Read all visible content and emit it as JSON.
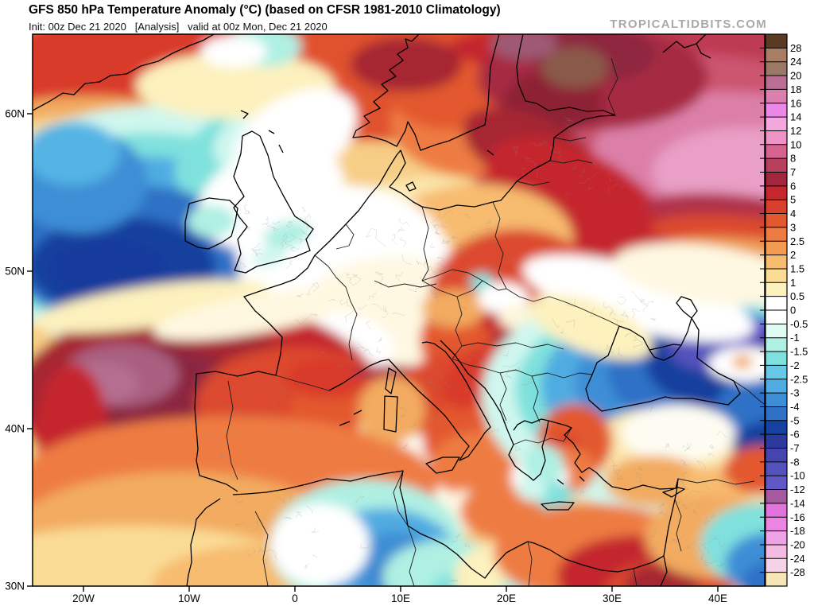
{
  "header": {
    "title": "GFS 850 hPa Temperature Anomaly (°C) (based on CFSR 1981-2010 Climatology)",
    "init_line": "Init: 00z Dec 21 2020   [Analysis]   valid at 00z Mon, Dec 21 2020",
    "watermark": "TROPICALTIDBITS.COM"
  },
  "axes": {
    "lat_labels": [
      "60N",
      "50N",
      "40N",
      "30N"
    ],
    "lon_labels": [
      "20W",
      "10W",
      "0",
      "10E",
      "20E",
      "30E",
      "40E"
    ]
  },
  "colorbar": {
    "labels": [
      "28",
      "24",
      "20",
      "18",
      "16",
      "14",
      "12",
      "10",
      "8",
      "7",
      "6",
      "5",
      "4",
      "3",
      "2.5",
      "2",
      "1.5",
      "1",
      "0.5",
      "0",
      "-0.5",
      "-1",
      "-1.5",
      "-2",
      "-2.5",
      "-3",
      "-4",
      "-5",
      "-6",
      "-7",
      "-8",
      "-10",
      "-12",
      "-14",
      "-16",
      "-18",
      "-20",
      "-24",
      "-28"
    ],
    "colors": [
      "#5A3A22",
      "#A97C64",
      "#9A7A66",
      "#BA6E94",
      "#DB7FAE",
      "#EC86E8",
      "#F2A8DE",
      "#ED93C6",
      "#D76490",
      "#B8405E",
      "#A1283C",
      "#C5272E",
      "#D8402C",
      "#E3592F",
      "#EE7B43",
      "#F29B53",
      "#F7BC6F",
      "#FADC95",
      "#FDF1BE",
      "#FFFFFF",
      "#FFFFFF",
      "#E0FBF3",
      "#AFF0E3",
      "#7FE1DD",
      "#67C8E8",
      "#50ACE2",
      "#3D8ED5",
      "#2E71C6",
      "#16419E",
      "#2B3A9C",
      "#4545B0",
      "#5452BC",
      "#6157C6",
      "#A55AA0",
      "#E273DC",
      "#EC85E2",
      "#F0A2E6",
      "#F3BBE0",
      "#F6D2E8",
      "#F6E6B6"
    ]
  },
  "chart_data": {
    "type": "heatmap",
    "title": "GFS 850 hPa Temperature Anomaly (°C)",
    "climatology": "CFSR 1981-2010",
    "valid": "00z Mon, Dec 21 2020",
    "units": "°C",
    "scale_range": [
      -28,
      28
    ],
    "legend_position": "right",
    "regions": [
      {
        "area": "North Atlantic cold pool west of Ireland",
        "anomaly_c": -7
      },
      {
        "area": "Atlantic warm blob west of Iberia",
        "anomaly_c": 12
      },
      {
        "area": "Atlantic southeast of Iceland (top-left corner)",
        "anomaly_c": 6
      },
      {
        "area": "Scandinavia and Finland",
        "anomaly_c": 14
      },
      {
        "area": "Northwest Russia",
        "anomaly_c": 17
      },
      {
        "area": "Baltics-Belarus dark red warm band",
        "anomaly_c": 9
      },
      {
        "area": "British Isles",
        "anomaly_c": 0
      },
      {
        "area": "France / Germany",
        "anomaly_c": 1.5
      },
      {
        "area": "Central Europe and Balkans",
        "anomaly_c": 5
      },
      {
        "area": "Western Iberia",
        "anomaly_c": 4
      },
      {
        "area": "Ukraine and Black Sea",
        "anomaly_c": -9
      },
      {
        "area": "Southern Russia violet core",
        "anomaly_c": -11
      },
      {
        "area": "Central Turkey",
        "anomaly_c": 1
      },
      {
        "area": "Eastern Turkey / Caucasus",
        "anomaly_c": -6
      },
      {
        "area": "Morocco / Northwest Africa",
        "anomaly_c": -4
      },
      {
        "area": "Libya-Egypt coast",
        "anomaly_c": 7
      },
      {
        "area": "Middle East bottom-right corner",
        "anomaly_c": -4
      }
    ]
  },
  "field_base": "#F7CE86",
  "field_blobs": [
    [
      460,
      40,
      520,
      95,
      0,
      "#E0512E"
    ],
    [
      120,
      55,
      180,
      85,
      0,
      "#D93A2B"
    ],
    [
      790,
      110,
      270,
      150,
      0,
      "#BE3B52"
    ],
    [
      830,
      130,
      225,
      105,
      0,
      "#CC5470"
    ],
    [
      870,
      150,
      165,
      78,
      0,
      "#DC7FA8"
    ],
    [
      898,
      172,
      118,
      55,
      0,
      "#E99FC6"
    ],
    [
      612,
      60,
      120,
      70,
      0,
      "#C5272E"
    ],
    [
      560,
      112,
      110,
      68,
      0,
      "#EE7B43"
    ],
    [
      522,
      75,
      70,
      45,
      0,
      "#E3592F"
    ],
    [
      470,
      38,
      70,
      34,
      0,
      "#A62833"
    ],
    [
      705,
      55,
      145,
      65,
      0,
      "#A62B42"
    ],
    [
      655,
      85,
      62,
      40,
      0,
      "#8E2136"
    ],
    [
      705,
      25,
      78,
      35,
      0,
      "#8E2840"
    ],
    [
      682,
      42,
      42,
      26,
      0,
      "#8A5A48"
    ],
    [
      618,
      12,
      42,
      20,
      0,
      "#9E5A74"
    ],
    [
      630,
      150,
      95,
      45,
      25,
      "#A62833"
    ],
    [
      672,
      210,
      95,
      42,
      35,
      "#A62833"
    ],
    [
      712,
      262,
      92,
      40,
      42,
      "#A82838"
    ],
    [
      752,
      305,
      100,
      36,
      30,
      "#AE2F44"
    ],
    [
      700,
      235,
      150,
      75,
      35,
      "#C5272E"
    ],
    [
      880,
      225,
      110,
      24,
      5,
      "#B03348"
    ],
    [
      888,
      252,
      110,
      24,
      5,
      "#DC4A2D"
    ],
    [
      896,
      278,
      105,
      22,
      5,
      "#EE9C55"
    ],
    [
      902,
      302,
      100,
      22,
      5,
      "#FBDC95"
    ],
    [
      500,
      300,
      160,
      120,
      0,
      "#FBE8B0"
    ],
    [
      560,
      258,
      120,
      70,
      0,
      "#F7BC6F"
    ],
    [
      70,
      100,
      110,
      22,
      0,
      "#F2AB60"
    ],
    [
      75,
      125,
      115,
      22,
      0,
      "#FBDC95"
    ],
    [
      80,
      150,
      110,
      20,
      0,
      "#BFF2E8"
    ],
    [
      155,
      245,
      245,
      155,
      0,
      "#CFF7EE"
    ],
    [
      148,
      252,
      215,
      128,
      0,
      "#7FE1DD"
    ],
    [
      140,
      262,
      188,
      108,
      0,
      "#50ACE2"
    ],
    [
      128,
      278,
      158,
      88,
      0,
      "#2E71C6"
    ],
    [
      112,
      292,
      118,
      62,
      0,
      "#16419E"
    ],
    [
      95,
      296,
      72,
      36,
      0,
      "#123A9C"
    ],
    [
      262,
      142,
      92,
      48,
      -30,
      "#7FE1DD"
    ],
    [
      292,
      120,
      72,
      36,
      -30,
      "#CFF7EE"
    ],
    [
      60,
      185,
      85,
      65,
      0,
      "#3D8ED5"
    ],
    [
      50,
      150,
      60,
      40,
      0,
      "#55B4E4"
    ],
    [
      300,
      205,
      95,
      62,
      -20,
      "#FFFFFF"
    ],
    [
      330,
      265,
      75,
      85,
      0,
      "#FFFFFF"
    ],
    [
      255,
      65,
      125,
      42,
      0,
      "#FDF1BE"
    ],
    [
      330,
      130,
      85,
      52,
      -30,
      "#FFFFFF"
    ],
    [
      290,
      15,
      48,
      26,
      0,
      "#AFF0E3"
    ],
    [
      253,
      22,
      42,
      20,
      0,
      "#FFFFFF"
    ],
    [
      395,
      300,
      135,
      110,
      0,
      "#FFFFFF"
    ],
    [
      460,
      370,
      135,
      90,
      0,
      "#FEF8E2"
    ],
    [
      350,
      395,
      105,
      50,
      0,
      "#FFFFFF"
    ],
    [
      225,
      235,
      30,
      20,
      0,
      "#AFF0E3"
    ],
    [
      320,
      252,
      30,
      16,
      -15,
      "#AFF0E3"
    ],
    [
      298,
      280,
      22,
      12,
      -15,
      "#CFF7EE"
    ],
    [
      610,
      330,
      110,
      85,
      0,
      "#DC4A2D"
    ],
    [
      648,
      420,
      100,
      80,
      0,
      "#DC4A2D"
    ],
    [
      565,
      385,
      78,
      58,
      0,
      "#E3592F"
    ],
    [
      615,
      392,
      42,
      26,
      0,
      "#A62833"
    ],
    [
      655,
      442,
      52,
      30,
      0,
      "#B03348"
    ],
    [
      590,
      357,
      30,
      18,
      0,
      "#C5272E"
    ],
    [
      530,
      345,
      40,
      24,
      0,
      "#F2AB60"
    ],
    [
      565,
      312,
      15,
      12,
      0,
      "#7FE1DD"
    ],
    [
      592,
      332,
      32,
      20,
      0,
      "#FFFFFF"
    ],
    [
      612,
      356,
      26,
      16,
      0,
      "#FDF6DC"
    ],
    [
      210,
      460,
      230,
      125,
      0,
      "#C5272E"
    ],
    [
      165,
      448,
      185,
      92,
      0,
      "#A62833"
    ],
    [
      142,
      452,
      122,
      62,
      0,
      "#8C2740"
    ],
    [
      112,
      428,
      72,
      40,
      0,
      "#A95E80"
    ],
    [
      88,
      438,
      46,
      26,
      0,
      "#B56E90"
    ],
    [
      330,
      465,
      125,
      72,
      0,
      "#DC4A2D"
    ],
    [
      395,
      492,
      72,
      82,
      0,
      "#E3592F"
    ],
    [
      372,
      432,
      52,
      26,
      0,
      "#D93A2B"
    ],
    [
      472,
      428,
      72,
      11,
      3,
      "#B03348"
    ],
    [
      50,
      500,
      45,
      85,
      0,
      "#C5272E"
    ],
    [
      150,
      342,
      150,
      26,
      -8,
      "#FDF1BE"
    ],
    [
      280,
      352,
      130,
      24,
      -10,
      "#FFF8E0"
    ],
    [
      482,
      502,
      72,
      62,
      0,
      "#FBE8B0"
    ],
    [
      492,
      545,
      52,
      42,
      0,
      "#FEFCF2"
    ],
    [
      502,
      458,
      26,
      16,
      0,
      "#AFF0E3"
    ],
    [
      245,
      565,
      265,
      85,
      0,
      "#EE7B43"
    ],
    [
      185,
      625,
      205,
      75,
      0,
      "#F2AB60"
    ],
    [
      125,
      680,
      225,
      62,
      0,
      "#FADC95"
    ],
    [
      305,
      692,
      155,
      52,
      0,
      "#F7BC6F"
    ],
    [
      505,
      452,
      62,
      42,
      -40,
      "#DC4A2D"
    ],
    [
      532,
      502,
      47,
      36,
      -50,
      "#E3592F"
    ],
    [
      562,
      542,
      62,
      42,
      0,
      "#EE7B43"
    ],
    [
      560,
      430,
      52,
      32,
      -40,
      "#D93A2B"
    ],
    [
      452,
      472,
      42,
      42,
      0,
      "#F2AB60"
    ],
    [
      545,
      600,
      42,
      26,
      0,
      "#FEF8E2"
    ],
    [
      590,
      600,
      52,
      36,
      0,
      "#EE7B43"
    ],
    [
      800,
      455,
      235,
      145,
      0,
      "#CFF7EE"
    ],
    [
      812,
      448,
      205,
      122,
      0,
      "#7FE1DD"
    ],
    [
      822,
      442,
      182,
      106,
      0,
      "#50ACE2"
    ],
    [
      838,
      436,
      156,
      92,
      0,
      "#3D8ED5"
    ],
    [
      852,
      426,
      128,
      72,
      0,
      "#2E71C6"
    ],
    [
      868,
      414,
      96,
      56,
      0,
      "#16419E"
    ],
    [
      856,
      394,
      56,
      30,
      0,
      "#5452BC"
    ],
    [
      906,
      382,
      42,
      24,
      0,
      "#6055C8"
    ],
    [
      934,
      396,
      32,
      20,
      0,
      "#4B3FA8"
    ],
    [
      922,
      470,
      62,
      42,
      0,
      "#2E71C6"
    ],
    [
      930,
      522,
      52,
      36,
      0,
      "#16419E"
    ],
    [
      895,
      415,
      45,
      22,
      0,
      "#FFFFFF"
    ],
    [
      893,
      412,
      13,
      9,
      0,
      "#F2AB60"
    ],
    [
      762,
      332,
      150,
      40,
      15,
      "#FFFFFF"
    ],
    [
      852,
      302,
      122,
      36,
      8,
      "#FEF8E2"
    ],
    [
      702,
      368,
      82,
      32,
      20,
      "#FDF1BE"
    ],
    [
      790,
      522,
      92,
      52,
      0,
      "#FBE8B0"
    ],
    [
      812,
      502,
      72,
      36,
      0,
      "#FEFCF2"
    ],
    [
      682,
      512,
      47,
      47,
      0,
      "#E3592F"
    ],
    [
      668,
      527,
      27,
      22,
      0,
      "#D93A2B"
    ],
    [
      672,
      548,
      36,
      30,
      0,
      "#EE7B43"
    ],
    [
      782,
      562,
      62,
      32,
      0,
      "#F2AB60"
    ],
    [
      862,
      570,
      50,
      26,
      0,
      "#F7BC6F"
    ],
    [
      638,
      557,
      36,
      30,
      0,
      "#FFFFFF"
    ],
    [
      642,
      542,
      26,
      26,
      0,
      "#AFF0E3"
    ],
    [
      657,
      582,
      23,
      19,
      0,
      "#7FE1DD"
    ],
    [
      628,
      572,
      19,
      15,
      0,
      "#CFF7EE"
    ],
    [
      420,
      642,
      122,
      82,
      0,
      "#AFF0E3"
    ],
    [
      442,
      658,
      92,
      62,
      0,
      "#50ACE2"
    ],
    [
      458,
      668,
      62,
      42,
      0,
      "#3D8ED5"
    ],
    [
      468,
      678,
      36,
      23,
      0,
      "#2E71C6"
    ],
    [
      362,
      642,
      62,
      52,
      0,
      "#FFFFFF"
    ],
    [
      522,
      682,
      82,
      46,
      0,
      "#AFF0E3"
    ],
    [
      562,
      702,
      62,
      32,
      0,
      "#7FE1DD"
    ],
    [
      592,
      682,
      62,
      42,
      0,
      "#FDF1BE"
    ],
    [
      622,
      702,
      36,
      21,
      0,
      "#AFF0E3"
    ],
    [
      705,
      652,
      125,
      62,
      0,
      "#EE7B43"
    ],
    [
      762,
      682,
      102,
      52,
      0,
      "#C5272E"
    ],
    [
      802,
      702,
      82,
      42,
      0,
      "#DC4A2D"
    ],
    [
      792,
      692,
      46,
      26,
      0,
      "#A62833"
    ],
    [
      852,
      632,
      82,
      52,
      0,
      "#F2AB60"
    ],
    [
      915,
      548,
      46,
      30,
      0,
      "#E3592F"
    ],
    [
      912,
      642,
      72,
      52,
      0,
      "#7FE1DD"
    ],
    [
      927,
      667,
      56,
      40,
      0,
      "#3D8ED5"
    ],
    [
      937,
      692,
      46,
      30,
      0,
      "#2E71C6"
    ]
  ]
}
